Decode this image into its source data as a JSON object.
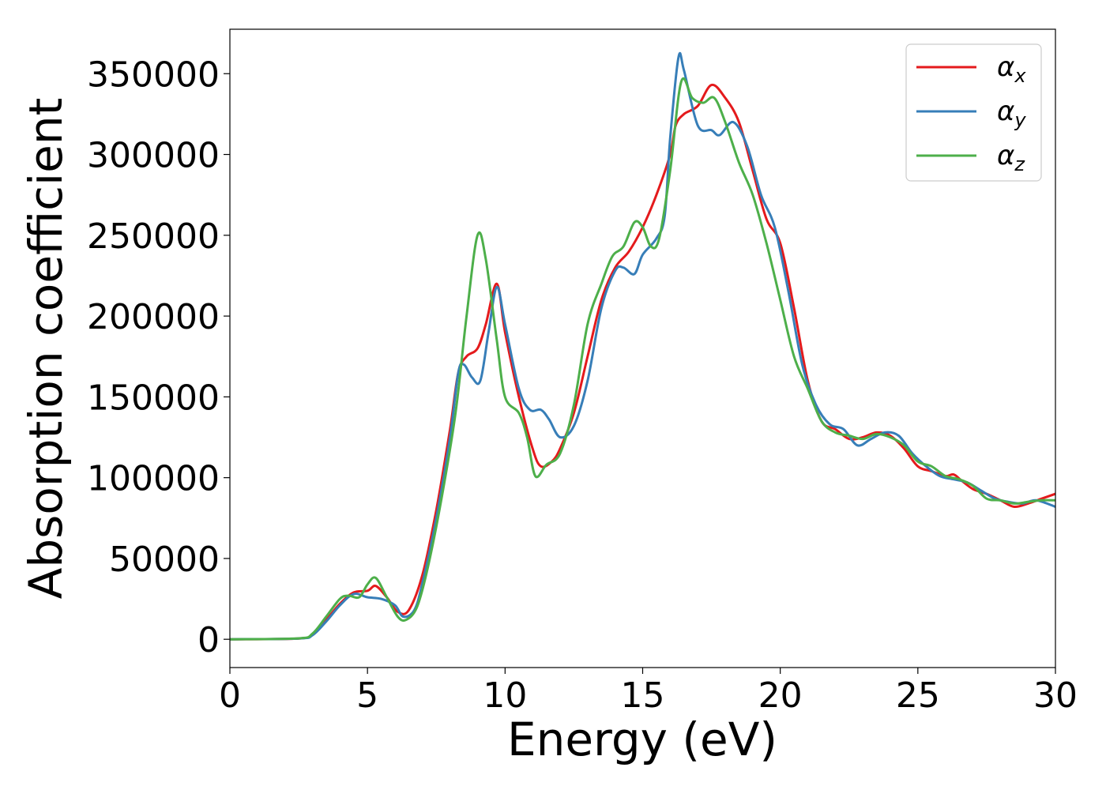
{
  "chart_data": {
    "type": "line",
    "title": "",
    "xlabel": "Energy (eV)",
    "ylabel": "Absorption coefficient",
    "xlim": [
      0,
      30
    ],
    "ylim": [
      -17500,
      377500
    ],
    "xticks": [
      0,
      5,
      10,
      15,
      20,
      25,
      30
    ],
    "yticks": [
      0,
      50000,
      100000,
      150000,
      200000,
      250000,
      300000,
      350000
    ],
    "grid": false,
    "legend_position": "top-right",
    "series": [
      {
        "name": "α",
        "subscript": "x",
        "color": "#e41a1c",
        "points": [
          [
            0,
            0
          ],
          [
            2.5,
            500
          ],
          [
            3,
            3000
          ],
          [
            3.5,
            12000
          ],
          [
            4,
            22000
          ],
          [
            4.5,
            29000
          ],
          [
            5,
            30000
          ],
          [
            5.3,
            33000
          ],
          [
            5.7,
            26000
          ],
          [
            6.1,
            17000
          ],
          [
            6.5,
            18000
          ],
          [
            7,
            40000
          ],
          [
            7.5,
            80000
          ],
          [
            8,
            130000
          ],
          [
            8.3,
            165000
          ],
          [
            8.6,
            175000
          ],
          [
            9,
            180000
          ],
          [
            9.3,
            195000
          ],
          [
            9.7,
            220000
          ],
          [
            10,
            190000
          ],
          [
            10.5,
            150000
          ],
          [
            11,
            118000
          ],
          [
            11.3,
            107000
          ],
          [
            11.7,
            110000
          ],
          [
            12,
            118000
          ],
          [
            12.5,
            140000
          ],
          [
            13,
            175000
          ],
          [
            13.5,
            210000
          ],
          [
            14,
            230000
          ],
          [
            14.5,
            240000
          ],
          [
            15,
            255000
          ],
          [
            15.5,
            275000
          ],
          [
            16,
            300000
          ],
          [
            16.2,
            318000
          ],
          [
            16.5,
            325000
          ],
          [
            17,
            330000
          ],
          [
            17.5,
            343000
          ],
          [
            18,
            335000
          ],
          [
            18.5,
            320000
          ],
          [
            19,
            290000
          ],
          [
            19.5,
            260000
          ],
          [
            20,
            245000
          ],
          [
            20.5,
            205000
          ],
          [
            21,
            160000
          ],
          [
            21.5,
            135000
          ],
          [
            22,
            130000
          ],
          [
            22.5,
            124000
          ],
          [
            23,
            125000
          ],
          [
            23.5,
            128000
          ],
          [
            24,
            126000
          ],
          [
            24.5,
            118000
          ],
          [
            25,
            107000
          ],
          [
            25.5,
            104000
          ],
          [
            26,
            101000
          ],
          [
            26.3,
            102000
          ],
          [
            26.6,
            98000
          ],
          [
            27,
            93000
          ],
          [
            27.5,
            90000
          ],
          [
            28,
            86000
          ],
          [
            28.5,
            82000
          ],
          [
            29,
            84000
          ],
          [
            29.5,
            87000
          ],
          [
            30,
            90000
          ]
        ]
      },
      {
        "name": "α",
        "subscript": "y",
        "color": "#377eb8",
        "points": [
          [
            0,
            0
          ],
          [
            2.5,
            500
          ],
          [
            3,
            2500
          ],
          [
            3.5,
            11000
          ],
          [
            4,
            21000
          ],
          [
            4.5,
            28000
          ],
          [
            5,
            26000
          ],
          [
            5.5,
            25000
          ],
          [
            6,
            21000
          ],
          [
            6.3,
            14000
          ],
          [
            6.7,
            18000
          ],
          [
            7,
            35000
          ],
          [
            7.5,
            75000
          ],
          [
            8,
            125000
          ],
          [
            8.3,
            165000
          ],
          [
            8.5,
            170000
          ],
          [
            8.8,
            162000
          ],
          [
            9.1,
            160000
          ],
          [
            9.4,
            190000
          ],
          [
            9.7,
            218000
          ],
          [
            10,
            195000
          ],
          [
            10.5,
            155000
          ],
          [
            10.9,
            142000
          ],
          [
            11.3,
            142000
          ],
          [
            11.6,
            136000
          ],
          [
            12,
            125000
          ],
          [
            12.5,
            132000
          ],
          [
            13,
            160000
          ],
          [
            13.5,
            205000
          ],
          [
            14,
            228000
          ],
          [
            14.3,
            230000
          ],
          [
            14.7,
            226000
          ],
          [
            15,
            238000
          ],
          [
            15.5,
            248000
          ],
          [
            15.8,
            262000
          ],
          [
            16,
            310000
          ],
          [
            16.3,
            360000
          ],
          [
            16.5,
            352000
          ],
          [
            17,
            318000
          ],
          [
            17.5,
            315000
          ],
          [
            17.8,
            312000
          ],
          [
            18.3,
            320000
          ],
          [
            18.8,
            305000
          ],
          [
            19.3,
            275000
          ],
          [
            19.8,
            255000
          ],
          [
            20.3,
            215000
          ],
          [
            20.8,
            170000
          ],
          [
            21.3,
            145000
          ],
          [
            21.8,
            133000
          ],
          [
            22.3,
            130000
          ],
          [
            22.8,
            120000
          ],
          [
            23.3,
            124000
          ],
          [
            23.8,
            128000
          ],
          [
            24.3,
            126000
          ],
          [
            24.8,
            115000
          ],
          [
            25.3,
            107000
          ],
          [
            25.8,
            101000
          ],
          [
            26.3,
            99000
          ],
          [
            26.8,
            97000
          ],
          [
            27.3,
            92000
          ],
          [
            27.8,
            87000
          ],
          [
            28.3,
            85000
          ],
          [
            28.8,
            84000
          ],
          [
            29.3,
            86000
          ],
          [
            30,
            82000
          ]
        ]
      },
      {
        "name": "α",
        "subscript": "z",
        "color": "#4daf4a",
        "points": [
          [
            0,
            0
          ],
          [
            2.5,
            600
          ],
          [
            3,
            3500
          ],
          [
            3.5,
            14000
          ],
          [
            4,
            25000
          ],
          [
            4.3,
            27000
          ],
          [
            4.7,
            26000
          ],
          [
            5,
            34000
          ],
          [
            5.3,
            38000
          ],
          [
            5.7,
            26000
          ],
          [
            6.1,
            14000
          ],
          [
            6.4,
            12000
          ],
          [
            6.8,
            20000
          ],
          [
            7.2,
            45000
          ],
          [
            7.7,
            88000
          ],
          [
            8.2,
            140000
          ],
          [
            8.6,
            200000
          ],
          [
            9,
            250000
          ],
          [
            9.3,
            235000
          ],
          [
            9.7,
            185000
          ],
          [
            10,
            150000
          ],
          [
            10.5,
            140000
          ],
          [
            10.8,
            125000
          ],
          [
            11.1,
            101000
          ],
          [
            11.5,
            108000
          ],
          [
            12,
            115000
          ],
          [
            12.5,
            145000
          ],
          [
            13,
            195000
          ],
          [
            13.5,
            220000
          ],
          [
            13.9,
            237000
          ],
          [
            14.3,
            243000
          ],
          [
            14.7,
            258000
          ],
          [
            15,
            255000
          ],
          [
            15.3,
            243000
          ],
          [
            15.6,
            248000
          ],
          [
            16,
            290000
          ],
          [
            16.4,
            345000
          ],
          [
            16.8,
            335000
          ],
          [
            17.2,
            332000
          ],
          [
            17.6,
            335000
          ],
          [
            18,
            320000
          ],
          [
            18.5,
            295000
          ],
          [
            19,
            275000
          ],
          [
            19.5,
            245000
          ],
          [
            20,
            210000
          ],
          [
            20.5,
            175000
          ],
          [
            21,
            155000
          ],
          [
            21.5,
            135000
          ],
          [
            22,
            128000
          ],
          [
            22.5,
            126000
          ],
          [
            23,
            124000
          ],
          [
            23.5,
            127000
          ],
          [
            24,
            125000
          ],
          [
            24.5,
            120000
          ],
          [
            25,
            110000
          ],
          [
            25.5,
            107000
          ],
          [
            26,
            101000
          ],
          [
            26.5,
            99000
          ],
          [
            27,
            95000
          ],
          [
            27.5,
            87000
          ],
          [
            28,
            86000
          ],
          [
            28.5,
            84000
          ],
          [
            29,
            85000
          ],
          [
            29.5,
            86000
          ],
          [
            30,
            86000
          ]
        ]
      }
    ]
  }
}
